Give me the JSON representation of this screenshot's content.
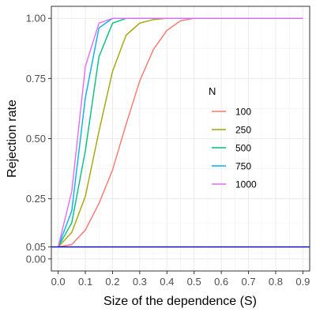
{
  "chart_data": {
    "type": "line",
    "title": "",
    "xlabel": "Size of the dependence (S)",
    "ylabel": "Rejection rate",
    "xlim": [
      -0.025,
      0.925
    ],
    "ylim": [
      -0.05,
      1.05
    ],
    "x_ticks": [
      0.0,
      0.1,
      0.2,
      0.3,
      0.4,
      0.5,
      0.6,
      0.7,
      0.8,
      0.9
    ],
    "x_tick_labels": [
      "0.0",
      "0.1",
      "0.2",
      "0.3",
      "0.4",
      "0.5",
      "0.6",
      "0.7",
      "0.8",
      "0.9"
    ],
    "y_ticks": [
      0.0,
      0.05,
      0.25,
      0.5,
      0.75,
      1.0
    ],
    "y_tick_labels": [
      "0.00",
      "0.05",
      "0.25",
      "0.50",
      "0.75",
      "1.00"
    ],
    "grid": true,
    "reference_line": {
      "y": 0.05,
      "color": "#0000CC"
    },
    "legend": {
      "title": "N",
      "position": "inside-right"
    },
    "x": [
      0.0,
      0.05,
      0.1,
      0.15,
      0.2,
      0.25,
      0.3,
      0.35,
      0.4,
      0.45,
      0.5,
      0.55,
      0.6,
      0.65,
      0.7,
      0.75,
      0.8,
      0.85,
      0.9
    ],
    "series": [
      {
        "name": "100",
        "color": "#F8766D",
        "values": [
          0.05,
          0.06,
          0.12,
          0.23,
          0.37,
          0.56,
          0.74,
          0.87,
          0.95,
          0.99,
          1.0,
          1.0,
          1.0,
          1.0,
          1.0,
          1.0,
          1.0,
          1.0,
          1.0
        ]
      },
      {
        "name": "250",
        "color": "#A3A500",
        "values": [
          0.05,
          0.11,
          0.26,
          0.53,
          0.78,
          0.93,
          0.98,
          0.995,
          1.0,
          1.0,
          1.0,
          1.0,
          1.0,
          1.0,
          1.0,
          1.0,
          1.0,
          1.0,
          1.0
        ]
      },
      {
        "name": "500",
        "color": "#00BF7D",
        "values": [
          0.05,
          0.15,
          0.45,
          0.84,
          0.98,
          1.0,
          1.0,
          1.0,
          1.0,
          1.0,
          1.0,
          1.0,
          1.0,
          1.0,
          1.0,
          1.0,
          1.0,
          1.0,
          1.0
        ]
      },
      {
        "name": "750",
        "color": "#00B0F6",
        "values": [
          0.05,
          0.2,
          0.67,
          0.96,
          1.0,
          1.0,
          1.0,
          1.0,
          1.0,
          1.0,
          1.0,
          1.0,
          1.0,
          1.0,
          1.0,
          1.0,
          1.0,
          1.0,
          1.0
        ]
      },
      {
        "name": "1000",
        "color": "#E76BF3",
        "values": [
          0.05,
          0.28,
          0.8,
          0.98,
          1.0,
          1.0,
          1.0,
          1.0,
          1.0,
          1.0,
          1.0,
          1.0,
          1.0,
          1.0,
          1.0,
          1.0,
          1.0,
          1.0,
          1.0
        ]
      }
    ]
  }
}
